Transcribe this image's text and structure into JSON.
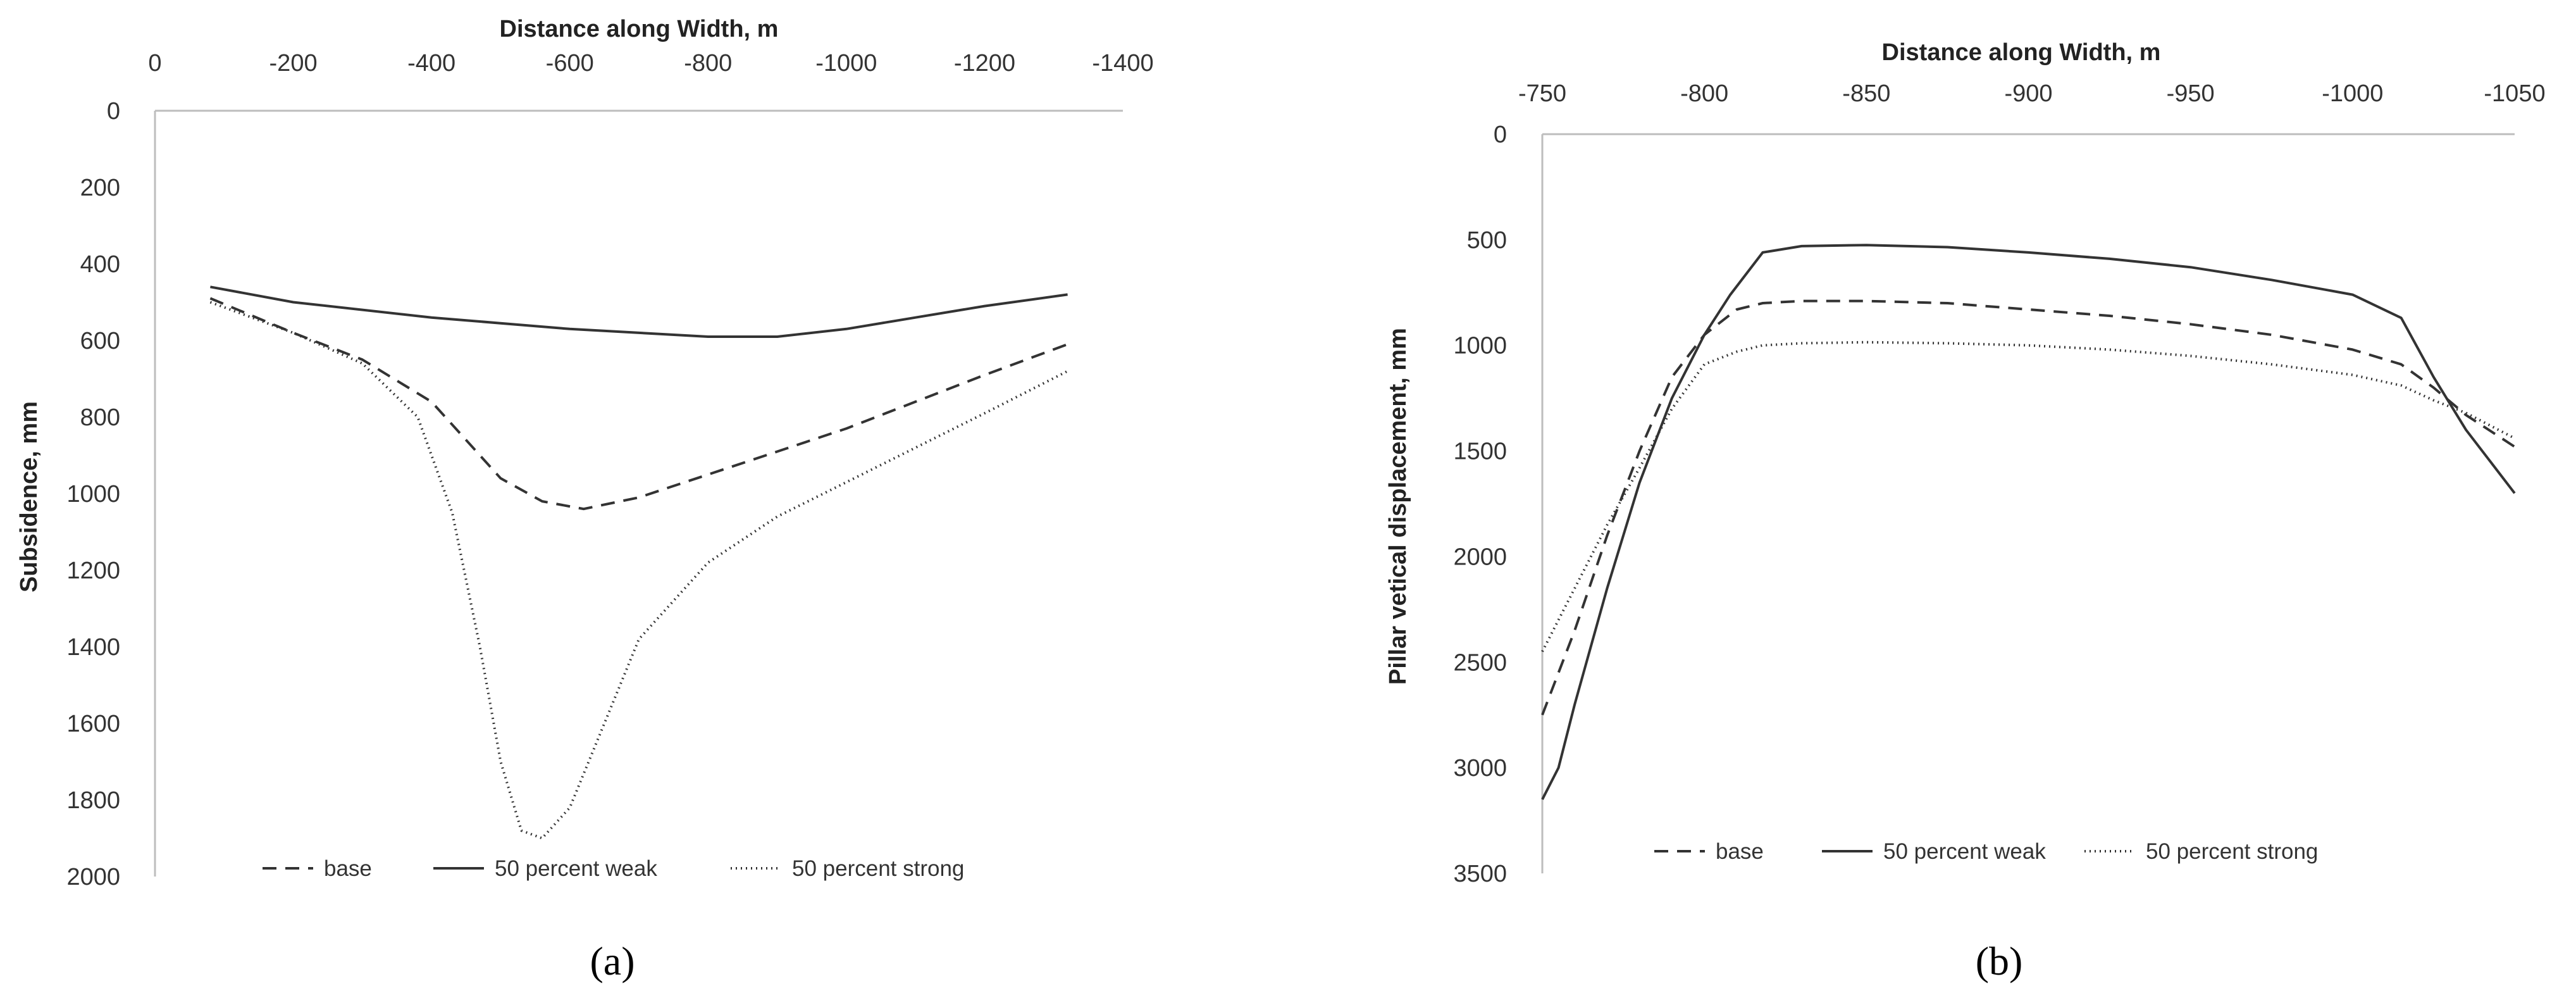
{
  "colors": {
    "axis": "#bdbdbd",
    "line": "#333333"
  },
  "legend": [
    "base",
    "50 percent weak",
    "50 percent strong"
  ],
  "chart_data": [
    {
      "type": "line",
      "caption": "(a)",
      "xlabel": "Distance along Width, m",
      "ylabel": "Subsidence, mm",
      "xlim": [
        0,
        -1400
      ],
      "ylim": [
        0,
        2000
      ],
      "x_ticks": [
        "0",
        "-200",
        "-400",
        "-600",
        "-800",
        "-1000",
        "-1200",
        "-1400"
      ],
      "y_ticks": [
        "0",
        "200",
        "400",
        "600",
        "800",
        "1000",
        "1200",
        "1400",
        "1600",
        "1800",
        "2000"
      ],
      "y_inverted": true,
      "x_axis_position": "top",
      "legend_placement": "bottom",
      "series": [
        {
          "name": "base",
          "style": "dashed",
          "x": [
            -80,
            -200,
            -300,
            -400,
            -450,
            -500,
            -560,
            -620,
            -700,
            -800,
            -900,
            -1000,
            -1100,
            -1200,
            -1320
          ],
          "y": [
            490,
            580,
            650,
            760,
            860,
            960,
            1020,
            1040,
            1010,
            950,
            890,
            830,
            760,
            690,
            610
          ]
        },
        {
          "name": "50 percent weak",
          "style": "solid",
          "x": [
            -80,
            -200,
            -400,
            -600,
            -800,
            -900,
            -1000,
            -1100,
            -1200,
            -1320
          ],
          "y": [
            460,
            500,
            540,
            570,
            590,
            590,
            570,
            540,
            510,
            480
          ]
        },
        {
          "name": "50 percent strong",
          "style": "dotted",
          "x": [
            -80,
            -200,
            -300,
            -380,
            -430,
            -470,
            -500,
            -530,
            -560,
            -600,
            -650,
            -700,
            -800,
            -900,
            -1000,
            -1100,
            -1200,
            -1320
          ],
          "y": [
            500,
            580,
            660,
            800,
            1050,
            1400,
            1700,
            1880,
            1900,
            1820,
            1600,
            1380,
            1180,
            1060,
            970,
            880,
            790,
            680
          ]
        }
      ]
    },
    {
      "type": "line",
      "caption": "(b)",
      "xlabel": "Distance along Width, m",
      "ylabel": "Pillar vetical displacement, mm",
      "xlim": [
        -750,
        -1050
      ],
      "ylim": [
        0,
        3500
      ],
      "x_ticks": [
        "-750",
        "-800",
        "-850",
        "-900",
        "-950",
        "-1000",
        "-1050"
      ],
      "y_ticks": [
        "0",
        "500",
        "1000",
        "1500",
        "2000",
        "2500",
        "3000",
        "3500"
      ],
      "y_inverted": true,
      "x_axis_position": "top",
      "legend_placement": "bottom",
      "series": [
        {
          "name": "base",
          "style": "dashed",
          "x": [
            -750,
            -760,
            -770,
            -780,
            -790,
            -800,
            -810,
            -818,
            -830,
            -850,
            -875,
            -900,
            -925,
            -950,
            -975,
            -1000,
            -1015,
            -1025,
            -1035,
            -1050
          ],
          "y": [
            2750,
            2350,
            1900,
            1500,
            1150,
            950,
            830,
            800,
            790,
            790,
            800,
            830,
            860,
            900,
            950,
            1020,
            1090,
            1200,
            1330,
            1480
          ]
        },
        {
          "name": "50 percent weak",
          "style": "solid",
          "x": [
            -750,
            -755,
            -760,
            -770,
            -780,
            -790,
            -800,
            -808,
            -818,
            -830,
            -850,
            -875,
            -900,
            -925,
            -950,
            -975,
            -1000,
            -1015,
            -1025,
            -1035,
            -1050
          ],
          "y": [
            3150,
            3000,
            2700,
            2150,
            1650,
            1250,
            950,
            760,
            560,
            530,
            525,
            535,
            560,
            590,
            630,
            690,
            760,
            870,
            1150,
            1400,
            1700
          ]
        },
        {
          "name": "50 percent strong",
          "style": "dotted",
          "x": [
            -750,
            -760,
            -770,
            -780,
            -790,
            -800,
            -810,
            -818,
            -830,
            -850,
            -875,
            -900,
            -925,
            -950,
            -975,
            -1000,
            -1015,
            -1025,
            -1035,
            -1050
          ],
          "y": [
            2450,
            2150,
            1850,
            1580,
            1300,
            1090,
            1030,
            1000,
            990,
            985,
            990,
            1000,
            1020,
            1050,
            1090,
            1140,
            1190,
            1260,
            1320,
            1440
          ]
        }
      ]
    }
  ]
}
